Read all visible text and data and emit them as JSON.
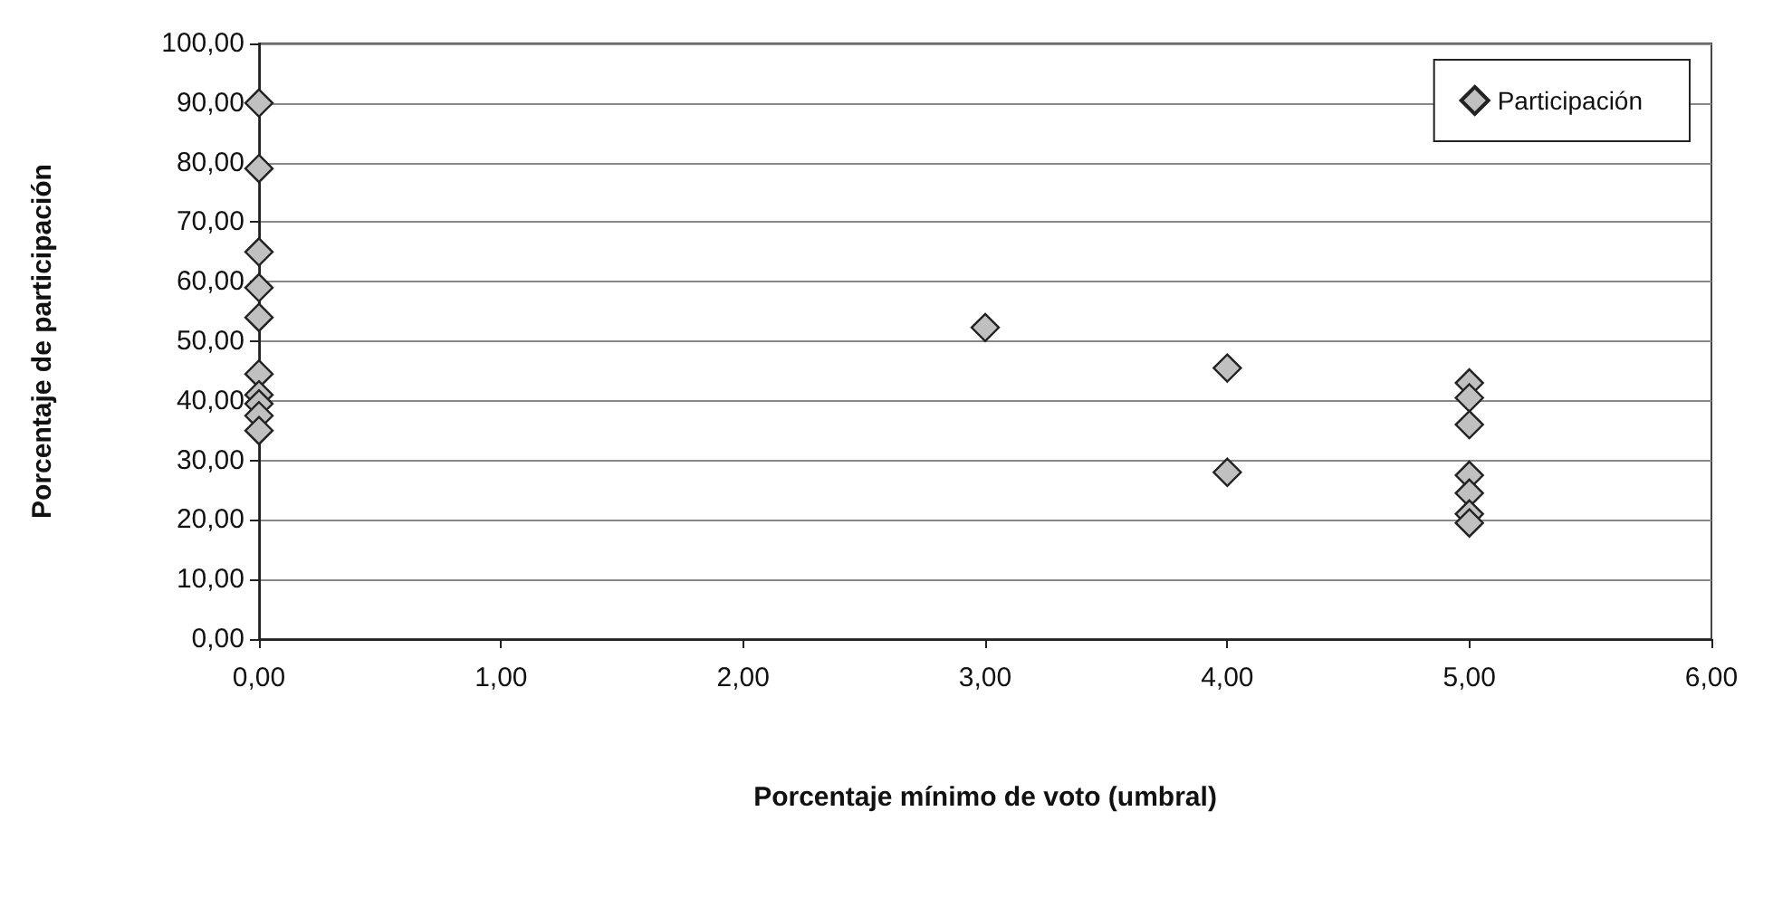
{
  "chart_data": {
    "type": "scatter",
    "xlabel": "Porcentaje mínimo de voto (umbral)",
    "ylabel": "Porcentaje de participación",
    "series": [
      {
        "name": "Participación",
        "color": "#c0c0c0",
        "x": [
          0,
          0,
          0,
          0,
          0,
          0,
          0,
          0,
          0,
          0,
          3,
          4,
          4,
          5,
          5,
          5,
          5,
          5,
          5,
          5
        ],
        "values": [
          90,
          79,
          65,
          59,
          54,
          44.5,
          41,
          39.5,
          37.5,
          35,
          52.3,
          45.5,
          28,
          43,
          40.5,
          36,
          27.5,
          24.5,
          21,
          19.5
        ]
      }
    ],
    "xlim": [
      0,
      6
    ],
    "xticks": [
      {
        "value": 0,
        "label": "0,00"
      },
      {
        "value": 1,
        "label": "1,00"
      },
      {
        "value": 2,
        "label": "2,00"
      },
      {
        "value": 3,
        "label": "3,00"
      },
      {
        "value": 4,
        "label": "4,00"
      },
      {
        "value": 5,
        "label": "5,00"
      },
      {
        "value": 6,
        "label": "6,00"
      }
    ],
    "ylim": [
      0,
      100
    ],
    "yticks": [
      {
        "value": 0,
        "label": "0,00"
      },
      {
        "value": 10,
        "label": "10,00"
      },
      {
        "value": 20,
        "label": "20,00"
      },
      {
        "value": 30,
        "label": "30,00"
      },
      {
        "value": 40,
        "label": "40,00"
      },
      {
        "value": 50,
        "label": "50,00"
      },
      {
        "value": 60,
        "label": "60,00"
      },
      {
        "value": 70,
        "label": "70,00"
      },
      {
        "value": 80,
        "label": "80,00"
      },
      {
        "value": 90,
        "label": "90,00"
      },
      {
        "value": 100,
        "label": "100,00"
      }
    ],
    "grid": "y",
    "legend": "top right",
    "marker": "diamond"
  }
}
